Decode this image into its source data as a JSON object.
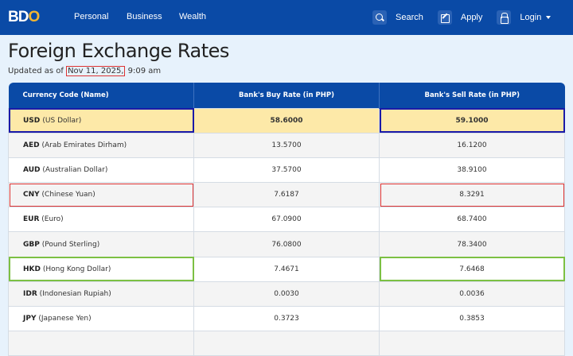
{
  "nav": {
    "logo": "BDO",
    "links": [
      "Personal",
      "Business",
      "Wealth"
    ],
    "search": "Search",
    "apply": "Apply",
    "login": "Login"
  },
  "page": {
    "title": "Foreign Exchange Rates",
    "updated_prefix": "Updated as of ",
    "updated_date": "Nov 11, 2025,",
    "updated_time": " 9:09 am"
  },
  "table": {
    "headers": [
      "Currency Code (Name)",
      "Bank's Buy Rate (in PHP)",
      "Bank's Sell Rate (in PHP)"
    ],
    "rows": [
      {
        "code": "USD",
        "name": "(US Dollar)",
        "buy": "58.6000",
        "sell": "59.1000"
      },
      {
        "code": "AED",
        "name": "(Arab Emirates Dirham)",
        "buy": "13.5700",
        "sell": "16.1200"
      },
      {
        "code": "AUD",
        "name": "(Australian Dollar)",
        "buy": "37.5700",
        "sell": "38.9100"
      },
      {
        "code": "CNY",
        "name": "(Chinese Yuan)",
        "buy": "7.6187",
        "sell": "8.3291"
      },
      {
        "code": "EUR",
        "name": "(Euro)",
        "buy": "67.0900",
        "sell": "68.7400"
      },
      {
        "code": "GBP",
        "name": "(Pound Sterling)",
        "buy": "76.0800",
        "sell": "78.3400"
      },
      {
        "code": "HKD",
        "name": "(Hong Kong Dollar)",
        "buy": "7.4671",
        "sell": "7.6468"
      },
      {
        "code": "IDR",
        "name": "(Indonesian Rupiah)",
        "buy": "0.0030",
        "sell": "0.0036"
      },
      {
        "code": "JPY",
        "name": "(Japanese Yen)",
        "buy": "0.3723",
        "sell": "0.3853"
      }
    ]
  },
  "colors": {
    "nav": "#0a4aa6",
    "highlight_row": "#fde9a8",
    "box_blue": "#1a1aa8",
    "box_red": "#dd3333",
    "box_green": "#7cc043"
  }
}
